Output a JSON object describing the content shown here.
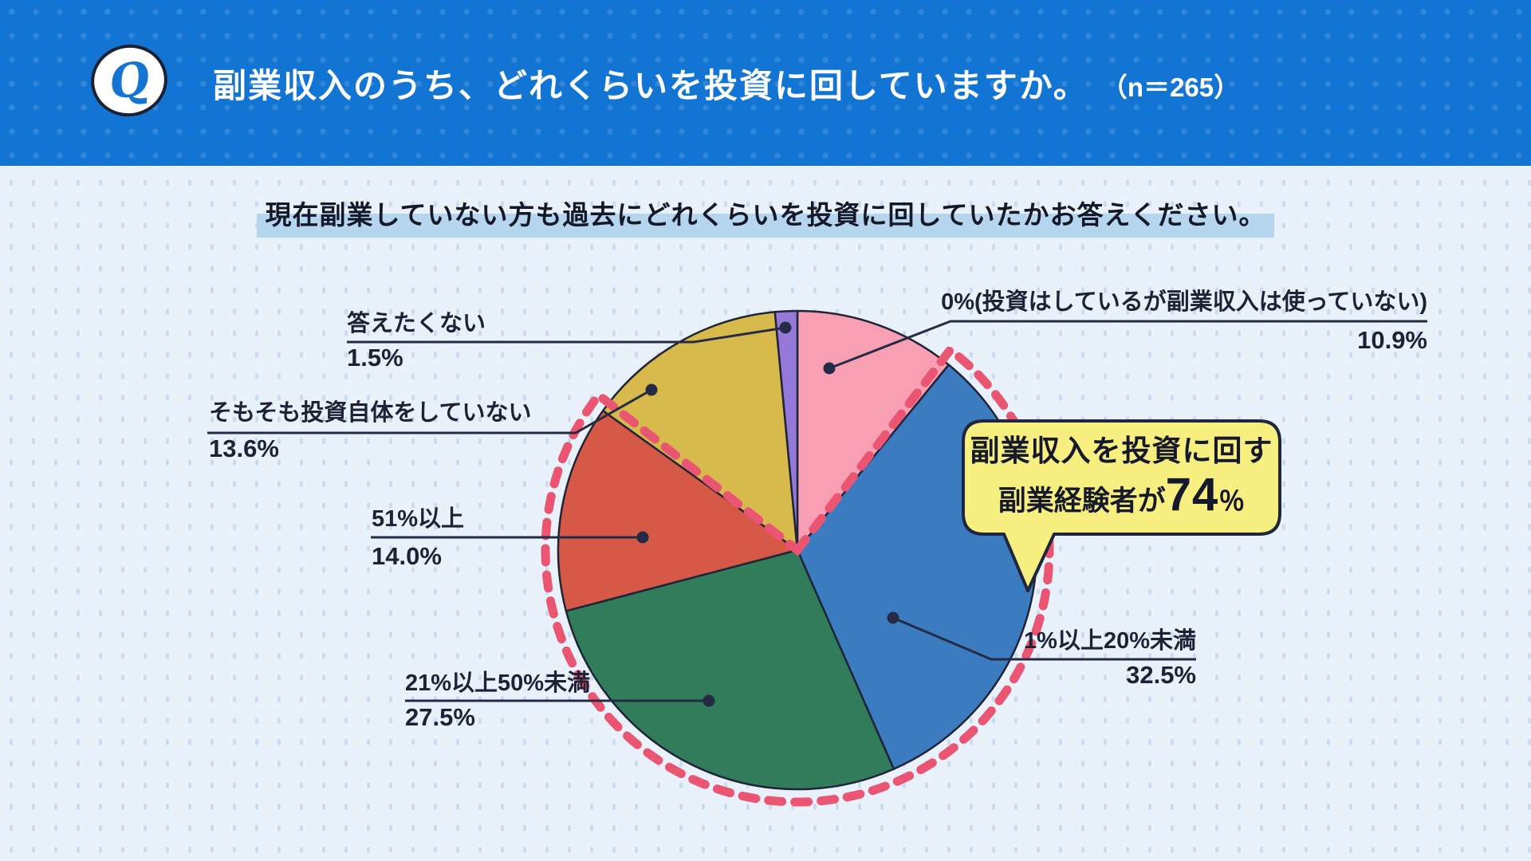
{
  "header": {
    "q_label": "Q",
    "title": "副業収入のうち、どれくらいを投資に回していますか。",
    "sample_size": "（n＝265）"
  },
  "subtitle": "現在副業していない方も過去にどれくらいを投資に回していたかお答えください。",
  "callout": {
    "line1": "副業収入を投資に回す",
    "line2_prefix": "副業経験者が",
    "line2_number": "74",
    "line2_suffix": "％"
  },
  "colors": {
    "header_bg": "#1375d3",
    "page_bg": "#e9f1fa",
    "subtitle_highlight": "#b6d5ee",
    "line_dark": "#262b45",
    "slice_outline": "#1f2438",
    "callout_bg": "#f7ef7f",
    "callout_border": "#20263d",
    "highlight_dash": "#ea5572"
  },
  "chart_data": {
    "type": "pie",
    "title": "副業収入のうち、どれくらいを投資に回していますか。（n＝265）",
    "start_angle": "top",
    "direction": "clockwise",
    "slices": [
      {
        "label": "0%(投資はしているが副業収入は使っていない)",
        "value": 10.9,
        "pct_label": "10.9%",
        "color": "#f89fb4"
      },
      {
        "label": "1%以上20%未満",
        "value": 32.5,
        "pct_label": "32.5%",
        "color": "#3b7cc0"
      },
      {
        "label": "21%以上50%未満",
        "value": 27.5,
        "pct_label": "27.5%",
        "color": "#317c5b"
      },
      {
        "label": "51%以上",
        "value": 14.0,
        "pct_label": "14.0%",
        "color": "#d65847"
      },
      {
        "label": "そもそも投資自体をしていない",
        "value": 13.6,
        "pct_label": "13.6%",
        "color": "#d8ba4c"
      },
      {
        "label": "答えたくない",
        "value": 1.5,
        "pct_label": "1.5%",
        "color": "#9579d9"
      }
    ],
    "highlight": {
      "total_pct": 74,
      "covers_slices": [
        "1%以上20%未満",
        "21%以上50%未満",
        "51%以上"
      ],
      "annotation": "副業収入を投資に回す副業経験者が74％",
      "color": "#ea5572"
    }
  }
}
